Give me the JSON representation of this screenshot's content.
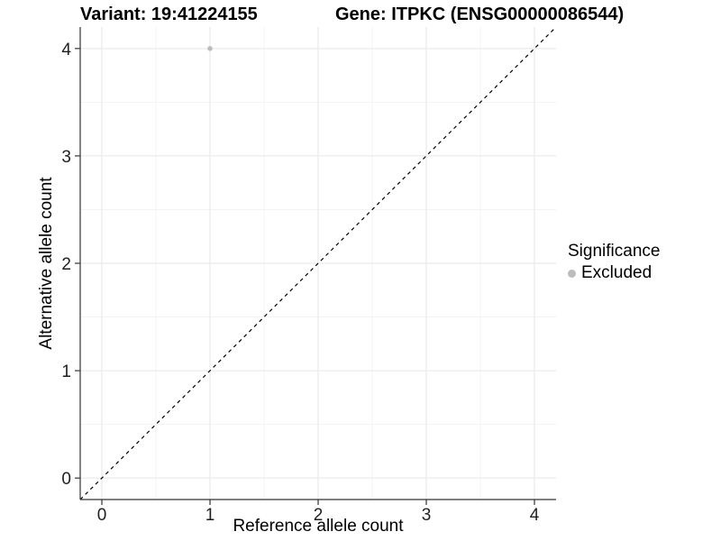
{
  "titles": {
    "left": "Variant: 19:41224155",
    "right": "Gene: ITPKC (ENSG00000086544)"
  },
  "axes": {
    "xlabel": "Reference allele count",
    "ylabel": "Alternative allele count"
  },
  "legend": {
    "title": "Significance",
    "items": [
      {
        "label": "Excluded",
        "color": "#bcbcbc"
      }
    ]
  },
  "chart_data": {
    "type": "scatter",
    "title": "Variant: 19:41224155   Gene: ITPKC (ENSG00000086544)",
    "xlabel": "Reference allele count",
    "ylabel": "Alternative allele count",
    "xlim": [
      -0.2,
      4.2
    ],
    "ylim": [
      -0.2,
      4.2
    ],
    "x_ticks": [
      0,
      1,
      2,
      3,
      4
    ],
    "y_ticks": [
      0,
      1,
      2,
      3,
      4
    ],
    "x_minor": [
      0.5,
      1.5,
      2.5,
      3.5
    ],
    "y_minor": [
      0.5,
      1.5,
      2.5,
      3.5
    ],
    "grid": true,
    "legend_position": "right",
    "identity_line": {
      "shown": true,
      "style": "dashed",
      "color": "#000000",
      "from": -0.2,
      "to": 4.2
    },
    "series": [
      {
        "name": "Excluded",
        "color": "#bcbcbc",
        "points": [
          {
            "x": 1,
            "y": 4
          }
        ]
      }
    ],
    "style": {
      "grid_major_color": "#e6e6e6",
      "grid_minor_color": "#f3f3f3",
      "axis_color": "#333333",
      "tick_label_color": "#1f1f1f",
      "point_radius": 2.8
    }
  }
}
